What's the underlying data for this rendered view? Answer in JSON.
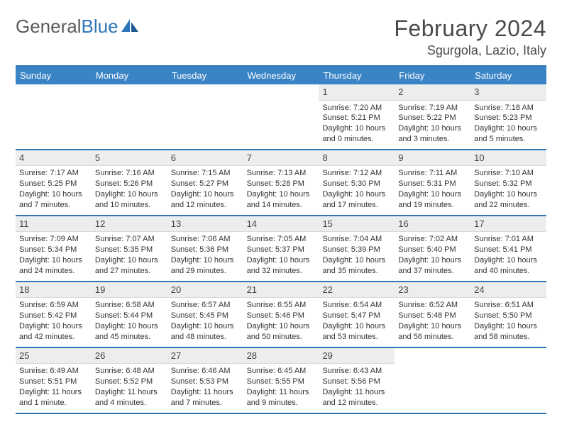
{
  "brand": {
    "part1": "General",
    "part2": "Blue"
  },
  "title": "February 2024",
  "location": "Sgurgola, Lazio, Italy",
  "colors": {
    "header_bar": "#3a83c5",
    "rule": "#2f76b8",
    "daynum_bg": "#eceeee",
    "text": "#333333",
    "logo_gray": "#5a5a5a",
    "logo_blue": "#2f76b8"
  },
  "weekdays": [
    "Sunday",
    "Monday",
    "Tuesday",
    "Wednesday",
    "Thursday",
    "Friday",
    "Saturday"
  ],
  "weeks": [
    [
      null,
      null,
      null,
      null,
      {
        "n": "1",
        "sr": "Sunrise: 7:20 AM",
        "ss": "Sunset: 5:21 PM",
        "dl": "Daylight: 10 hours and 0 minutes."
      },
      {
        "n": "2",
        "sr": "Sunrise: 7:19 AM",
        "ss": "Sunset: 5:22 PM",
        "dl": "Daylight: 10 hours and 3 minutes."
      },
      {
        "n": "3",
        "sr": "Sunrise: 7:18 AM",
        "ss": "Sunset: 5:23 PM",
        "dl": "Daylight: 10 hours and 5 minutes."
      }
    ],
    [
      {
        "n": "4",
        "sr": "Sunrise: 7:17 AM",
        "ss": "Sunset: 5:25 PM",
        "dl": "Daylight: 10 hours and 7 minutes."
      },
      {
        "n": "5",
        "sr": "Sunrise: 7:16 AM",
        "ss": "Sunset: 5:26 PM",
        "dl": "Daylight: 10 hours and 10 minutes."
      },
      {
        "n": "6",
        "sr": "Sunrise: 7:15 AM",
        "ss": "Sunset: 5:27 PM",
        "dl": "Daylight: 10 hours and 12 minutes."
      },
      {
        "n": "7",
        "sr": "Sunrise: 7:13 AM",
        "ss": "Sunset: 5:28 PM",
        "dl": "Daylight: 10 hours and 14 minutes."
      },
      {
        "n": "8",
        "sr": "Sunrise: 7:12 AM",
        "ss": "Sunset: 5:30 PM",
        "dl": "Daylight: 10 hours and 17 minutes."
      },
      {
        "n": "9",
        "sr": "Sunrise: 7:11 AM",
        "ss": "Sunset: 5:31 PM",
        "dl": "Daylight: 10 hours and 19 minutes."
      },
      {
        "n": "10",
        "sr": "Sunrise: 7:10 AM",
        "ss": "Sunset: 5:32 PM",
        "dl": "Daylight: 10 hours and 22 minutes."
      }
    ],
    [
      {
        "n": "11",
        "sr": "Sunrise: 7:09 AM",
        "ss": "Sunset: 5:34 PM",
        "dl": "Daylight: 10 hours and 24 minutes."
      },
      {
        "n": "12",
        "sr": "Sunrise: 7:07 AM",
        "ss": "Sunset: 5:35 PM",
        "dl": "Daylight: 10 hours and 27 minutes."
      },
      {
        "n": "13",
        "sr": "Sunrise: 7:06 AM",
        "ss": "Sunset: 5:36 PM",
        "dl": "Daylight: 10 hours and 29 minutes."
      },
      {
        "n": "14",
        "sr": "Sunrise: 7:05 AM",
        "ss": "Sunset: 5:37 PM",
        "dl": "Daylight: 10 hours and 32 minutes."
      },
      {
        "n": "15",
        "sr": "Sunrise: 7:04 AM",
        "ss": "Sunset: 5:39 PM",
        "dl": "Daylight: 10 hours and 35 minutes."
      },
      {
        "n": "16",
        "sr": "Sunrise: 7:02 AM",
        "ss": "Sunset: 5:40 PM",
        "dl": "Daylight: 10 hours and 37 minutes."
      },
      {
        "n": "17",
        "sr": "Sunrise: 7:01 AM",
        "ss": "Sunset: 5:41 PM",
        "dl": "Daylight: 10 hours and 40 minutes."
      }
    ],
    [
      {
        "n": "18",
        "sr": "Sunrise: 6:59 AM",
        "ss": "Sunset: 5:42 PM",
        "dl": "Daylight: 10 hours and 42 minutes."
      },
      {
        "n": "19",
        "sr": "Sunrise: 6:58 AM",
        "ss": "Sunset: 5:44 PM",
        "dl": "Daylight: 10 hours and 45 minutes."
      },
      {
        "n": "20",
        "sr": "Sunrise: 6:57 AM",
        "ss": "Sunset: 5:45 PM",
        "dl": "Daylight: 10 hours and 48 minutes."
      },
      {
        "n": "21",
        "sr": "Sunrise: 6:55 AM",
        "ss": "Sunset: 5:46 PM",
        "dl": "Daylight: 10 hours and 50 minutes."
      },
      {
        "n": "22",
        "sr": "Sunrise: 6:54 AM",
        "ss": "Sunset: 5:47 PM",
        "dl": "Daylight: 10 hours and 53 minutes."
      },
      {
        "n": "23",
        "sr": "Sunrise: 6:52 AM",
        "ss": "Sunset: 5:48 PM",
        "dl": "Daylight: 10 hours and 56 minutes."
      },
      {
        "n": "24",
        "sr": "Sunrise: 6:51 AM",
        "ss": "Sunset: 5:50 PM",
        "dl": "Daylight: 10 hours and 58 minutes."
      }
    ],
    [
      {
        "n": "25",
        "sr": "Sunrise: 6:49 AM",
        "ss": "Sunset: 5:51 PM",
        "dl": "Daylight: 11 hours and 1 minute."
      },
      {
        "n": "26",
        "sr": "Sunrise: 6:48 AM",
        "ss": "Sunset: 5:52 PM",
        "dl": "Daylight: 11 hours and 4 minutes."
      },
      {
        "n": "27",
        "sr": "Sunrise: 6:46 AM",
        "ss": "Sunset: 5:53 PM",
        "dl": "Daylight: 11 hours and 7 minutes."
      },
      {
        "n": "28",
        "sr": "Sunrise: 6:45 AM",
        "ss": "Sunset: 5:55 PM",
        "dl": "Daylight: 11 hours and 9 minutes."
      },
      {
        "n": "29",
        "sr": "Sunrise: 6:43 AM",
        "ss": "Sunset: 5:56 PM",
        "dl": "Daylight: 11 hours and 12 minutes."
      },
      null,
      null
    ]
  ]
}
